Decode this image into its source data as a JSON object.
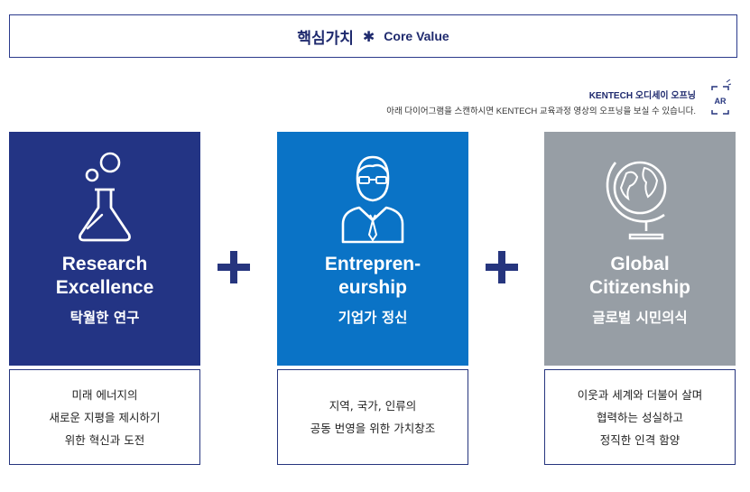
{
  "header": {
    "title": "핵심가치",
    "star": "✱",
    "subtitle": "Core Value"
  },
  "ar_note": {
    "title": "KENTECH 오디세이 오프닝",
    "desc": "아래 다이어그램을 스캔하시면 KENTECH 교육과정 영상의 오프닝을 보실 수 있습니다.",
    "icon_label": "AR",
    "icon": "ar-scan-icon"
  },
  "cards": [
    {
      "title_lines": [
        "Research",
        "Excellence"
      ],
      "subtitle": "탁월한 연구",
      "icon": "flask-icon",
      "color": "#233484",
      "desc_lines": [
        "미래 에너지의",
        "새로운 지평을 제시하기",
        "위한 혁신과 도전"
      ]
    },
    {
      "title_lines": [
        "Entrepren-",
        "eurship"
      ],
      "subtitle": "기업가 정신",
      "icon": "businessman-icon",
      "color": "#0a73c6",
      "desc_lines": [
        "지역, 국가, 인류의",
        "공동 번영을 위한 가치창조"
      ]
    },
    {
      "title_lines": [
        "Global",
        "Citizenship"
      ],
      "subtitle": "글로벌 시민의식",
      "icon": "globe-icon",
      "color": "#979ea5",
      "desc_lines": [
        "이웃과 세계와 더불어 살며",
        "협력하는 성실하고",
        "정직한 인격 함양"
      ]
    }
  ],
  "plus_icon": "plus-icon",
  "plus_color": "#26357e"
}
